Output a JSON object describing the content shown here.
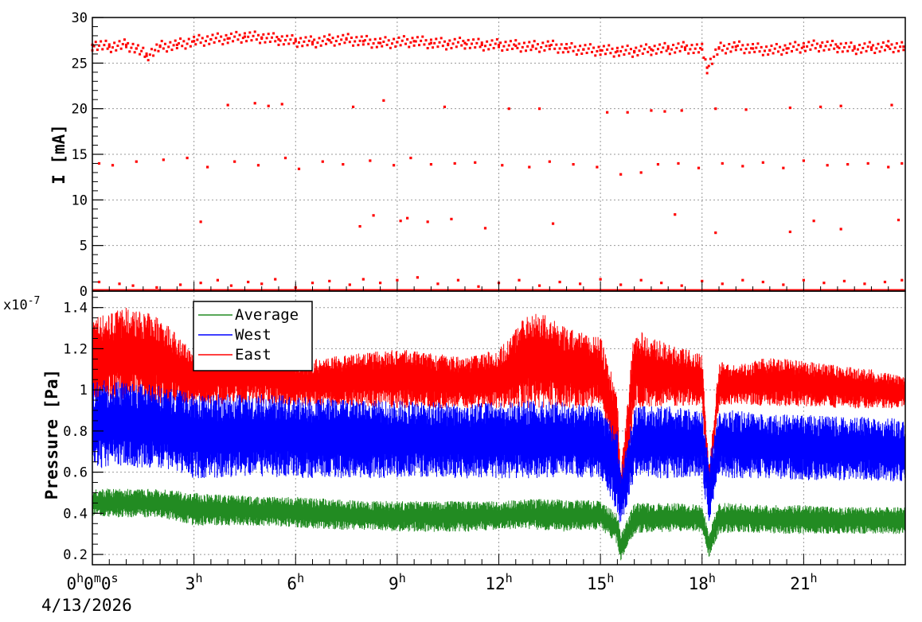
{
  "chart_data": [
    {
      "type": "scatter",
      "ylabel": "I [mA]",
      "ylim": [
        0,
        30
      ],
      "yticks": [
        "0",
        "5",
        "10",
        "15",
        "20",
        "25",
        "30"
      ],
      "grid": true,
      "marker_color": "#ff0000",
      "x_range_hours": [
        0,
        24
      ],
      "series": [
        {
          "color": "#ff0000",
          "points": [
            [
              0.0,
              27.0
            ],
            [
              0.5,
              26.8
            ],
            [
              1.0,
              27.0
            ],
            [
              1.3,
              26.6
            ],
            [
              1.6,
              25.8
            ],
            [
              2.0,
              26.8
            ],
            [
              2.5,
              27.0
            ],
            [
              3.0,
              27.4
            ],
            [
              3.5,
              27.6
            ],
            [
              4.0,
              27.7
            ],
            [
              4.5,
              27.9
            ],
            [
              5.0,
              27.8
            ],
            [
              5.5,
              27.6
            ],
            [
              6.0,
              27.4
            ],
            [
              6.5,
              27.3
            ],
            [
              7.0,
              27.5
            ],
            [
              7.5,
              27.6
            ],
            [
              8.0,
              27.4
            ],
            [
              8.5,
              27.2
            ],
            [
              9.0,
              27.3
            ],
            [
              9.5,
              27.4
            ],
            [
              10.0,
              27.2
            ],
            [
              10.5,
              27.1
            ],
            [
              11.0,
              27.2
            ],
            [
              11.5,
              27.0
            ],
            [
              12.0,
              27.0
            ],
            [
              12.5,
              26.9
            ],
            [
              13.0,
              26.8
            ],
            [
              13.5,
              26.9
            ],
            [
              14.0,
              26.6
            ],
            [
              14.5,
              26.5
            ],
            [
              15.0,
              26.4
            ],
            [
              15.5,
              26.3
            ],
            [
              16.0,
              26.3
            ],
            [
              16.5,
              26.5
            ],
            [
              17.0,
              26.6
            ],
            [
              17.5,
              26.7
            ],
            [
              18.0,
              26.5
            ],
            [
              18.15,
              24.5
            ],
            [
              18.5,
              26.6
            ],
            [
              19.0,
              26.8
            ],
            [
              19.5,
              26.6
            ],
            [
              20.0,
              26.4
            ],
            [
              20.5,
              26.6
            ],
            [
              21.0,
              26.8
            ],
            [
              21.5,
              26.9
            ],
            [
              22.0,
              26.8
            ],
            [
              22.5,
              26.6
            ],
            [
              23.0,
              26.7
            ],
            [
              23.5,
              26.8
            ],
            [
              23.95,
              26.8
            ],
            [
              4.0,
              20.4
            ],
            [
              4.8,
              20.6
            ],
            [
              5.2,
              20.3
            ],
            [
              5.6,
              20.5
            ],
            [
              7.7,
              20.2
            ],
            [
              8.6,
              20.9
            ],
            [
              10.4,
              20.2
            ],
            [
              12.3,
              20.0
            ],
            [
              13.2,
              20.0
            ],
            [
              15.2,
              19.6
            ],
            [
              15.8,
              19.6
            ],
            [
              16.5,
              19.8
            ],
            [
              16.9,
              19.7
            ],
            [
              17.4,
              19.8
            ],
            [
              18.4,
              20.0
            ],
            [
              19.3,
              19.9
            ],
            [
              20.6,
              20.1
            ],
            [
              21.5,
              20.2
            ],
            [
              22.1,
              20.3
            ],
            [
              23.6,
              20.4
            ],
            [
              0.2,
              14.0
            ],
            [
              0.6,
              13.8
            ],
            [
              1.3,
              14.2
            ],
            [
              2.1,
              14.4
            ],
            [
              2.8,
              14.6
            ],
            [
              3.4,
              13.6
            ],
            [
              4.2,
              14.2
            ],
            [
              4.9,
              13.8
            ],
            [
              5.7,
              14.6
            ],
            [
              6.1,
              13.4
            ],
            [
              6.8,
              14.2
            ],
            [
              7.4,
              13.9
            ],
            [
              8.2,
              14.3
            ],
            [
              8.9,
              13.8
            ],
            [
              9.4,
              14.6
            ],
            [
              10.0,
              13.9
            ],
            [
              10.7,
              14.0
            ],
            [
              11.3,
              14.1
            ],
            [
              12.1,
              13.8
            ],
            [
              12.9,
              13.6
            ],
            [
              13.5,
              14.2
            ],
            [
              14.2,
              13.9
            ],
            [
              14.9,
              13.6
            ],
            [
              15.6,
              12.8
            ],
            [
              16.2,
              13.0
            ],
            [
              16.7,
              13.9
            ],
            [
              17.3,
              14.0
            ],
            [
              17.9,
              13.5
            ],
            [
              18.6,
              14.0
            ],
            [
              19.2,
              13.7
            ],
            [
              19.8,
              14.1
            ],
            [
              20.4,
              13.5
            ],
            [
              21.0,
              14.3
            ],
            [
              21.7,
              13.8
            ],
            [
              22.3,
              13.9
            ],
            [
              22.9,
              14.0
            ],
            [
              23.5,
              13.6
            ],
            [
              23.9,
              14.0
            ],
            [
              3.2,
              7.6
            ],
            [
              8.3,
              8.3
            ],
            [
              7.9,
              7.1
            ],
            [
              9.1,
              7.7
            ],
            [
              9.3,
              8.0
            ],
            [
              9.9,
              7.6
            ],
            [
              10.6,
              7.9
            ],
            [
              11.6,
              6.9
            ],
            [
              13.6,
              7.4
            ],
            [
              17.2,
              8.4
            ],
            [
              18.4,
              6.4
            ],
            [
              20.6,
              6.5
            ],
            [
              21.3,
              7.7
            ],
            [
              22.1,
              6.8
            ],
            [
              23.8,
              7.8
            ],
            [
              0.2,
              1.0
            ],
            [
              0.8,
              0.8
            ],
            [
              1.2,
              0.6
            ],
            [
              1.9,
              0.4
            ],
            [
              2.6,
              0.7
            ],
            [
              3.2,
              0.9
            ],
            [
              3.7,
              1.2
            ],
            [
              4.1,
              0.6
            ],
            [
              4.6,
              1.0
            ],
            [
              5.0,
              0.8
            ],
            [
              5.4,
              1.3
            ],
            [
              6.0,
              0.4
            ],
            [
              6.5,
              0.9
            ],
            [
              7.0,
              1.1
            ],
            [
              7.6,
              0.7
            ],
            [
              8.0,
              1.3
            ],
            [
              8.5,
              0.9
            ],
            [
              9.0,
              1.2
            ],
            [
              9.6,
              1.5
            ],
            [
              10.2,
              0.8
            ],
            [
              10.8,
              1.2
            ],
            [
              11.4,
              0.5
            ],
            [
              12.0,
              0.9
            ],
            [
              12.6,
              1.2
            ],
            [
              13.2,
              0.6
            ],
            [
              13.8,
              1.0
            ],
            [
              14.4,
              0.8
            ],
            [
              15.0,
              1.3
            ],
            [
              15.6,
              0.7
            ],
            [
              16.2,
              1.2
            ],
            [
              16.8,
              0.9
            ],
            [
              17.4,
              0.6
            ],
            [
              18.0,
              1.1
            ],
            [
              18.6,
              0.8
            ],
            [
              19.2,
              1.2
            ],
            [
              19.8,
              1.0
            ],
            [
              20.4,
              0.7
            ],
            [
              21.0,
              1.2
            ],
            [
              21.6,
              0.9
            ],
            [
              22.2,
              1.1
            ],
            [
              22.8,
              0.8
            ],
            [
              23.4,
              1.0
            ],
            [
              23.9,
              1.2
            ]
          ]
        }
      ]
    },
    {
      "type": "line",
      "ylabel": "Pressure [Pa]",
      "ylim": [
        0.15,
        1.48
      ],
      "yscale_label": "x10-7",
      "yticks": [
        "0.2",
        "0.4",
        "0.6",
        "0.8",
        "1",
        "1.2",
        "1.4"
      ],
      "grid": true,
      "x_range_hours": [
        0,
        24
      ],
      "xticks": [
        "0h0m0s",
        "3h",
        "6h",
        "9h",
        "12h",
        "15h",
        "18h",
        "21h"
      ],
      "x_origin_label": "4/13/2026",
      "legend_placement": "top-left",
      "series": [
        {
          "name": "Average",
          "color": "#228b22",
          "hours": [
            0,
            1,
            2,
            3,
            4,
            5,
            6,
            7,
            8,
            9,
            10,
            11,
            12,
            13,
            14,
            15,
            15.5,
            15.6,
            16,
            17,
            18,
            18.2,
            18.5,
            19,
            20,
            21,
            22,
            23,
            24
          ],
          "low": [
            0.38,
            0.38,
            0.38,
            0.34,
            0.34,
            0.34,
            0.33,
            0.32,
            0.32,
            0.31,
            0.31,
            0.31,
            0.32,
            0.32,
            0.31,
            0.32,
            0.25,
            0.17,
            0.3,
            0.31,
            0.31,
            0.18,
            0.3,
            0.31,
            0.3,
            0.3,
            0.3,
            0.3,
            0.3
          ],
          "high": [
            0.52,
            0.52,
            0.52,
            0.5,
            0.49,
            0.48,
            0.48,
            0.47,
            0.46,
            0.46,
            0.46,
            0.46,
            0.46,
            0.47,
            0.47,
            0.46,
            0.4,
            0.3,
            0.45,
            0.45,
            0.45,
            0.3,
            0.45,
            0.45,
            0.44,
            0.44,
            0.43,
            0.43,
            0.43
          ]
        },
        {
          "name": "West",
          "color": "#0000ff",
          "hours": [
            0,
            1,
            2,
            3,
            4,
            5,
            6,
            7,
            8,
            9,
            10,
            11,
            12,
            13,
            14,
            15,
            15.5,
            15.6,
            16,
            17,
            18,
            18.2,
            18.5,
            19,
            20,
            21,
            22,
            23,
            24
          ],
          "low": [
            0.62,
            0.62,
            0.62,
            0.57,
            0.57,
            0.58,
            0.57,
            0.57,
            0.57,
            0.57,
            0.57,
            0.57,
            0.57,
            0.57,
            0.57,
            0.57,
            0.4,
            0.33,
            0.57,
            0.57,
            0.57,
            0.35,
            0.57,
            0.57,
            0.57,
            0.56,
            0.56,
            0.56,
            0.55
          ],
          "high": [
            1.05,
            1.04,
            1.02,
            0.98,
            0.98,
            0.98,
            0.97,
            0.96,
            0.95,
            0.95,
            0.94,
            0.94,
            0.94,
            0.95,
            0.94,
            0.93,
            0.8,
            0.6,
            0.92,
            0.92,
            0.91,
            0.65,
            0.91,
            0.9,
            0.88,
            0.88,
            0.87,
            0.87,
            0.86
          ]
        },
        {
          "name": "East",
          "color": "#ff0000",
          "hours": [
            0,
            1,
            2,
            3,
            4,
            5,
            6,
            7,
            8,
            9,
            10,
            11,
            12,
            13,
            14,
            15,
            15.5,
            15.6,
            16,
            17,
            18,
            18.2,
            18.5,
            19,
            20,
            21,
            22,
            23,
            24
          ],
          "low": [
            0.94,
            0.94,
            0.93,
            0.92,
            0.93,
            0.93,
            0.92,
            0.92,
            0.92,
            0.91,
            0.91,
            0.91,
            0.91,
            0.91,
            0.91,
            0.91,
            0.55,
            0.38,
            0.91,
            0.92,
            0.92,
            0.45,
            0.92,
            0.93,
            0.92,
            0.92,
            0.91,
            0.91,
            0.91
          ],
          "high": [
            1.36,
            1.4,
            1.36,
            1.18,
            1.24,
            1.22,
            1.14,
            1.16,
            1.18,
            1.2,
            1.18,
            1.16,
            1.2,
            1.4,
            1.3,
            1.26,
            1.0,
            0.6,
            1.3,
            1.22,
            1.18,
            0.62,
            1.14,
            1.12,
            1.16,
            1.14,
            1.12,
            1.1,
            1.06
          ]
        }
      ]
    }
  ]
}
